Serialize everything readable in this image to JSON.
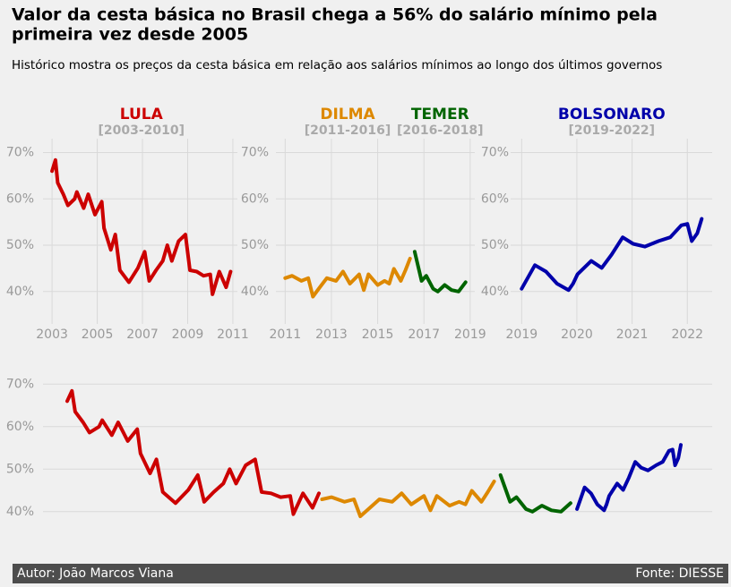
{
  "chart_data": {
    "type": "line",
    "title": [
      "Valor da cesta básica no Brasil chega a 56% do salário mínimo pela",
      "primeira vez desde 2005"
    ],
    "subtitle": "Histórico mostra os preços da cesta básica em relação aos salários mínimos ao longo dos últimos governos",
    "author": "Autor: João Marcos Viana",
    "source": "Fonte: DIESSE",
    "ylim": [
      33,
      73
    ],
    "yticks": [
      {
        "value": 40,
        "label": "40%"
      },
      {
        "value": 50,
        "label": "50%"
      },
      {
        "value": 60,
        "label": "60%"
      },
      {
        "value": 70,
        "label": "70%"
      }
    ],
    "grid": true,
    "panels": [
      {
        "xlim": [
          2002.6,
          2011.2
        ],
        "xticks": [
          2003,
          2005,
          2007,
          2009,
          2011
        ],
        "series": [
          {
            "name": "LULA",
            "period": "[2003-2010]",
            "color": "#cc0000",
            "x": [
              2003.0,
              2003.15,
              2003.25,
              2003.5,
              2003.7,
              2004.0,
              2004.1,
              2004.4,
              2004.6,
              2004.9,
              2005.2,
              2005.3,
              2005.6,
              2005.8,
              2006.0,
              2006.4,
              2006.8,
              2007.1,
              2007.3,
              2007.6,
              2007.9,
              2008.1,
              2008.3,
              2008.6,
              2008.9,
              2009.1,
              2009.4,
              2009.7,
              2010.0,
              2010.1,
              2010.4,
              2010.7,
              2010.9
            ],
            "values": [
              66,
              68.4,
              63.5,
              61,
              58.6,
              60,
              61.5,
              58,
              61,
              56.6,
              59.4,
              53.7,
              49,
              52.3,
              44.6,
              42,
              45.1,
              48.6,
              42.3,
              44.6,
              46.6,
              50,
              46.6,
              50.9,
              52.3,
              44.6,
              44.3,
              43.4,
              43.7,
              39.4,
              44.3,
              40.9,
              44.3
            ]
          }
        ]
      },
      {
        "xlim": [
          2010.6,
          2019.2
        ],
        "xticks": [
          2011,
          2013,
          2015,
          2017,
          2019
        ],
        "series": [
          {
            "name": "DILMA",
            "period": "[2011-2016]",
            "color": "#dd8800",
            "x": [
              2011.0,
              2011.3,
              2011.7,
              2012.0,
              2012.2,
              2012.5,
              2012.8,
              2013.2,
              2013.5,
              2013.8,
              2014.2,
              2014.4,
              2014.6,
              2015.0,
              2015.3,
              2015.5,
              2015.7,
              2016.0,
              2016.2,
              2016.4
            ],
            "values": [
              42.9,
              43.4,
              42.3,
              42.9,
              38.9,
              40.9,
              42.9,
              42.3,
              44.3,
              41.7,
              43.7,
              40.3,
              43.7,
              41.4,
              42.3,
              41.7,
              44.9,
              42.3,
              44.6,
              47.1
            ]
          },
          {
            "name": "TEMER",
            "period": "[2016-2018]",
            "color": "#006400",
            "x": [
              2016.6,
              2016.9,
              2017.1,
              2017.4,
              2017.6,
              2017.9,
              2018.2,
              2018.5,
              2018.8
            ],
            "values": [
              48.6,
              42.3,
              43.4,
              40.6,
              40,
              41.4,
              40.3,
              40,
              42
            ]
          }
        ]
      },
      {
        "xlim": [
          2018.8,
          2022.45
        ],
        "xticks": [
          2019,
          2020,
          2021,
          2022
        ],
        "series": [
          {
            "name": "BOLSONARO",
            "period": "[2019-2022]",
            "color": "#0000aa",
            "x": [
              2019.0,
              2019.24,
              2019.44,
              2019.64,
              2019.85,
              2019.93,
              2020.01,
              2020.26,
              2020.45,
              2020.63,
              2020.83,
              2021.02,
              2021.23,
              2021.48,
              2021.69,
              2021.89,
              2022.0,
              2022.08,
              2022.18,
              2022.26
            ],
            "values": [
              40.6,
              45.7,
              44.3,
              41.7,
              40.3,
              41.7,
              43.7,
              46.6,
              45.1,
              48,
              51.7,
              50.3,
              49.7,
              50.9,
              51.7,
              54.3,
              54.6,
              50.9,
              52.6,
              55.7
            ]
          }
        ]
      }
    ]
  }
}
